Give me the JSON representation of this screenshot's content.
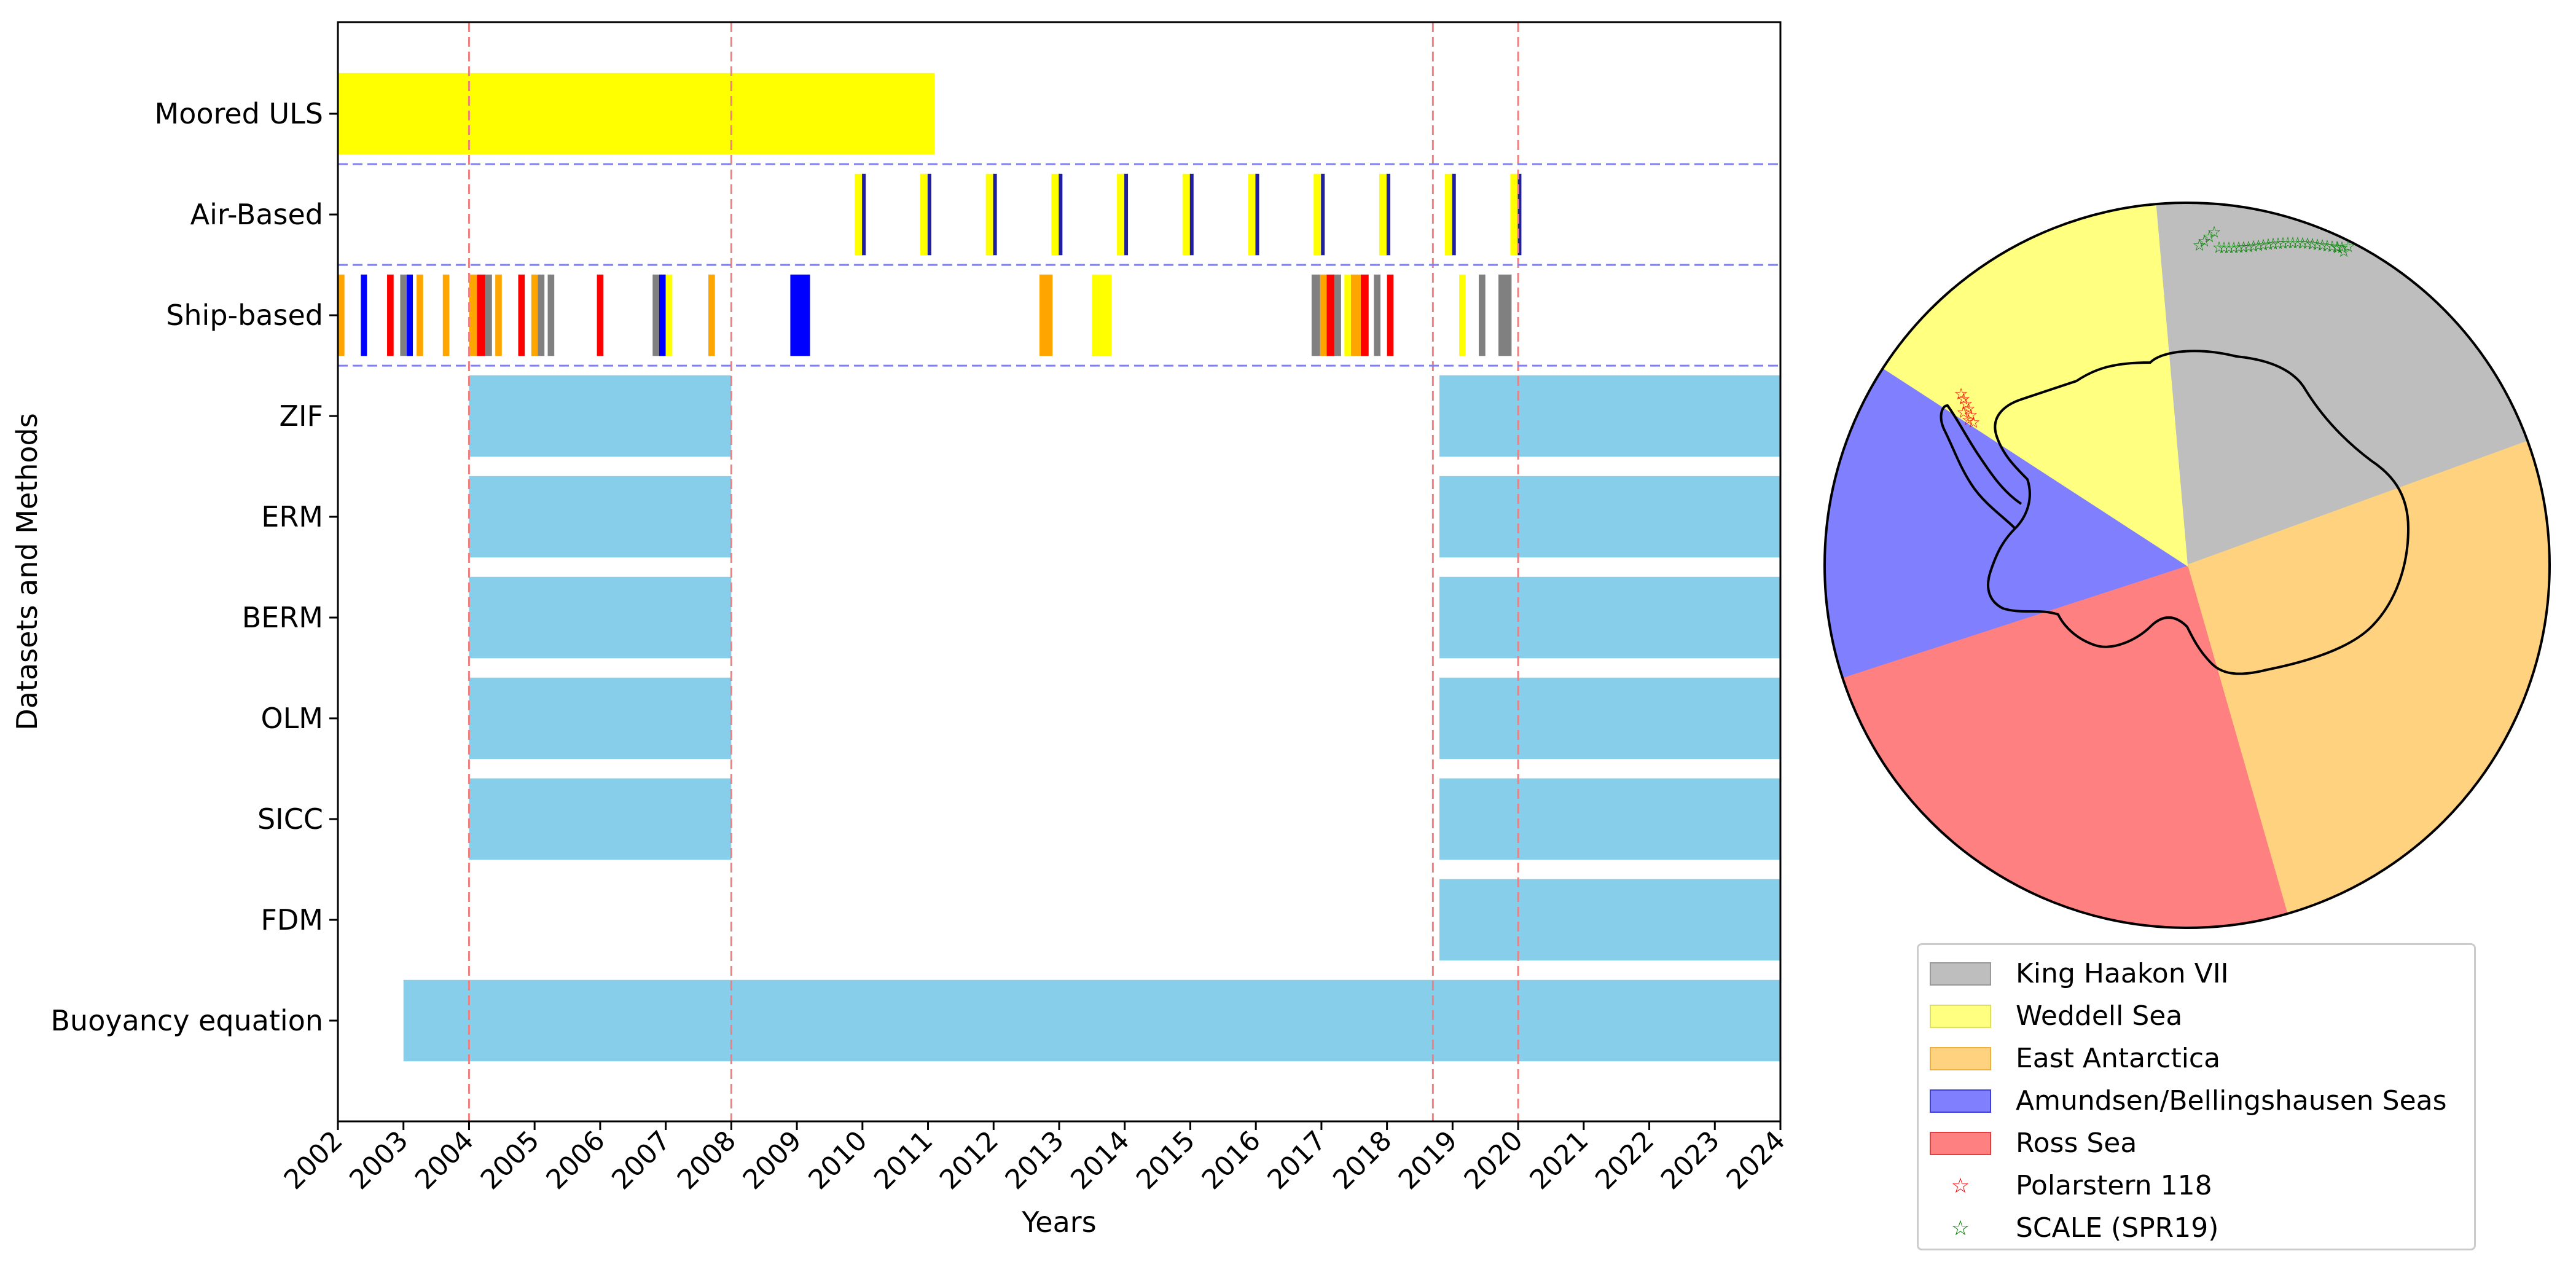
{
  "chart_data": [
    {
      "type": "timeline",
      "xlabel": "Years",
      "ylabel": "Datasets and Methods",
      "xlim": [
        2002,
        2024
      ],
      "xticks": [
        "2002",
        "2003",
        "2004",
        "2005",
        "2006",
        "2007",
        "2008",
        "2009",
        "2010",
        "2011",
        "2012",
        "2013",
        "2014",
        "2015",
        "2016",
        "2017",
        "2018",
        "2019",
        "2020",
        "2021",
        "2022",
        "2023",
        "2024"
      ],
      "rows": [
        "Moored ULS",
        "Air-Based",
        "Ship-based",
        "ZIF",
        "ERM",
        "BERM",
        "OLM",
        "SICC",
        "FDM",
        "Buoyancy equation"
      ],
      "colors": {
        "uls": "#ffff00",
        "method": "#87ceeb",
        "air_fill": "#ffff00",
        "air_line": "#1f1fa0",
        "vline": "#f08080",
        "hline": "#8080f0",
        "orange": "#ffa500",
        "blue": "#0000ff",
        "red": "#ff0000",
        "gray": "#808080",
        "yellow": "#ffff00"
      },
      "vertical_lines": [
        2004.0,
        2008.0,
        2018.7,
        2020.0
      ],
      "row_separators_after": [
        "Moored ULS",
        "Air-Based",
        "Ship-based"
      ],
      "uls_span": [
        2002.0,
        2011.1
      ],
      "method_spans": {
        "ZIF": [
          [
            2004.0,
            2008.0
          ],
          [
            2018.8,
            2024.0
          ]
        ],
        "ERM": [
          [
            2004.0,
            2008.0
          ],
          [
            2018.8,
            2024.0
          ]
        ],
        "BERM": [
          [
            2004.0,
            2008.0
          ],
          [
            2018.8,
            2024.0
          ]
        ],
        "OLM": [
          [
            2004.0,
            2008.0
          ],
          [
            2018.8,
            2024.0
          ]
        ],
        "SICC": [
          [
            2004.0,
            2008.0
          ],
          [
            2018.8,
            2024.0
          ]
        ],
        "FDM": [
          [
            2018.8,
            2024.0
          ]
        ],
        "Buoyancy equation": [
          [
            2003.0,
            2024.0
          ]
        ]
      },
      "air_based_events": [
        2009.9,
        2010.9,
        2011.9,
        2012.9,
        2013.9,
        2014.9,
        2015.9,
        2016.9,
        2017.9,
        2018.9,
        2019.9
      ],
      "ship_based_events": [
        {
          "start": 2002.0,
          "end": 2002.1,
          "color": "orange"
        },
        {
          "start": 2002.35,
          "end": 2002.42,
          "color": "blue"
        },
        {
          "start": 2002.75,
          "end": 2002.85,
          "color": "red"
        },
        {
          "start": 2002.95,
          "end": 2003.05,
          "color": "gray"
        },
        {
          "start": 2003.05,
          "end": 2003.12,
          "color": "blue"
        },
        {
          "start": 2003.2,
          "end": 2003.3,
          "color": "orange"
        },
        {
          "start": 2003.6,
          "end": 2003.7,
          "color": "orange"
        },
        {
          "start": 2004.0,
          "end": 2004.12,
          "color": "orange"
        },
        {
          "start": 2004.12,
          "end": 2004.25,
          "color": "red"
        },
        {
          "start": 2004.25,
          "end": 2004.35,
          "color": "gray"
        },
        {
          "start": 2004.4,
          "end": 2004.5,
          "color": "orange"
        },
        {
          "start": 2004.75,
          "end": 2004.85,
          "color": "red"
        },
        {
          "start": 2004.95,
          "end": 2005.05,
          "color": "orange"
        },
        {
          "start": 2005.05,
          "end": 2005.15,
          "color": "gray"
        },
        {
          "start": 2005.2,
          "end": 2005.3,
          "color": "gray"
        },
        {
          "start": 2005.95,
          "end": 2006.05,
          "color": "red"
        },
        {
          "start": 2006.8,
          "end": 2006.9,
          "color": "gray"
        },
        {
          "start": 2006.9,
          "end": 2007.0,
          "color": "blue"
        },
        {
          "start": 2007.0,
          "end": 2007.1,
          "color": "yellow"
        },
        {
          "start": 2007.65,
          "end": 2007.75,
          "color": "orange"
        },
        {
          "start": 2008.9,
          "end": 2009.2,
          "color": "blue"
        },
        {
          "start": 2012.7,
          "end": 2012.9,
          "color": "orange"
        },
        {
          "start": 2013.5,
          "end": 2013.8,
          "color": "yellow"
        },
        {
          "start": 2016.85,
          "end": 2016.98,
          "color": "gray"
        },
        {
          "start": 2016.98,
          "end": 2017.08,
          "color": "orange"
        },
        {
          "start": 2017.08,
          "end": 2017.2,
          "color": "red"
        },
        {
          "start": 2017.2,
          "end": 2017.3,
          "color": "gray"
        },
        {
          "start": 2017.35,
          "end": 2017.45,
          "color": "yellow"
        },
        {
          "start": 2017.45,
          "end": 2017.6,
          "color": "orange"
        },
        {
          "start": 2017.6,
          "end": 2017.72,
          "color": "red"
        },
        {
          "start": 2017.8,
          "end": 2017.9,
          "color": "gray"
        },
        {
          "start": 2018.0,
          "end": 2018.1,
          "color": "red"
        },
        {
          "start": 2019.1,
          "end": 2019.2,
          "color": "yellow"
        },
        {
          "start": 2019.4,
          "end": 2019.5,
          "color": "gray"
        },
        {
          "start": 2019.7,
          "end": 2019.9,
          "color": "gray"
        }
      ]
    },
    {
      "type": "map",
      "projection": "south-polar",
      "sectors": [
        {
          "name": "King Haakon VII",
          "color": "#bebebe"
        },
        {
          "name": "Weddell Sea",
          "color": "#ffff80"
        },
        {
          "name": "East Antarctica",
          "color": "#ffd27f"
        },
        {
          "name": "Amundsen/Bellingshausen Seas",
          "color": "#8080ff"
        },
        {
          "name": "Ross Sea",
          "color": "#ff8080"
        }
      ],
      "tracks": [
        {
          "name": "Polarstern 118",
          "color": "#ff0000",
          "marker": "☆"
        },
        {
          "name": "SCALE (SPR19)",
          "color": "#008000",
          "marker": "☆"
        }
      ]
    }
  ]
}
